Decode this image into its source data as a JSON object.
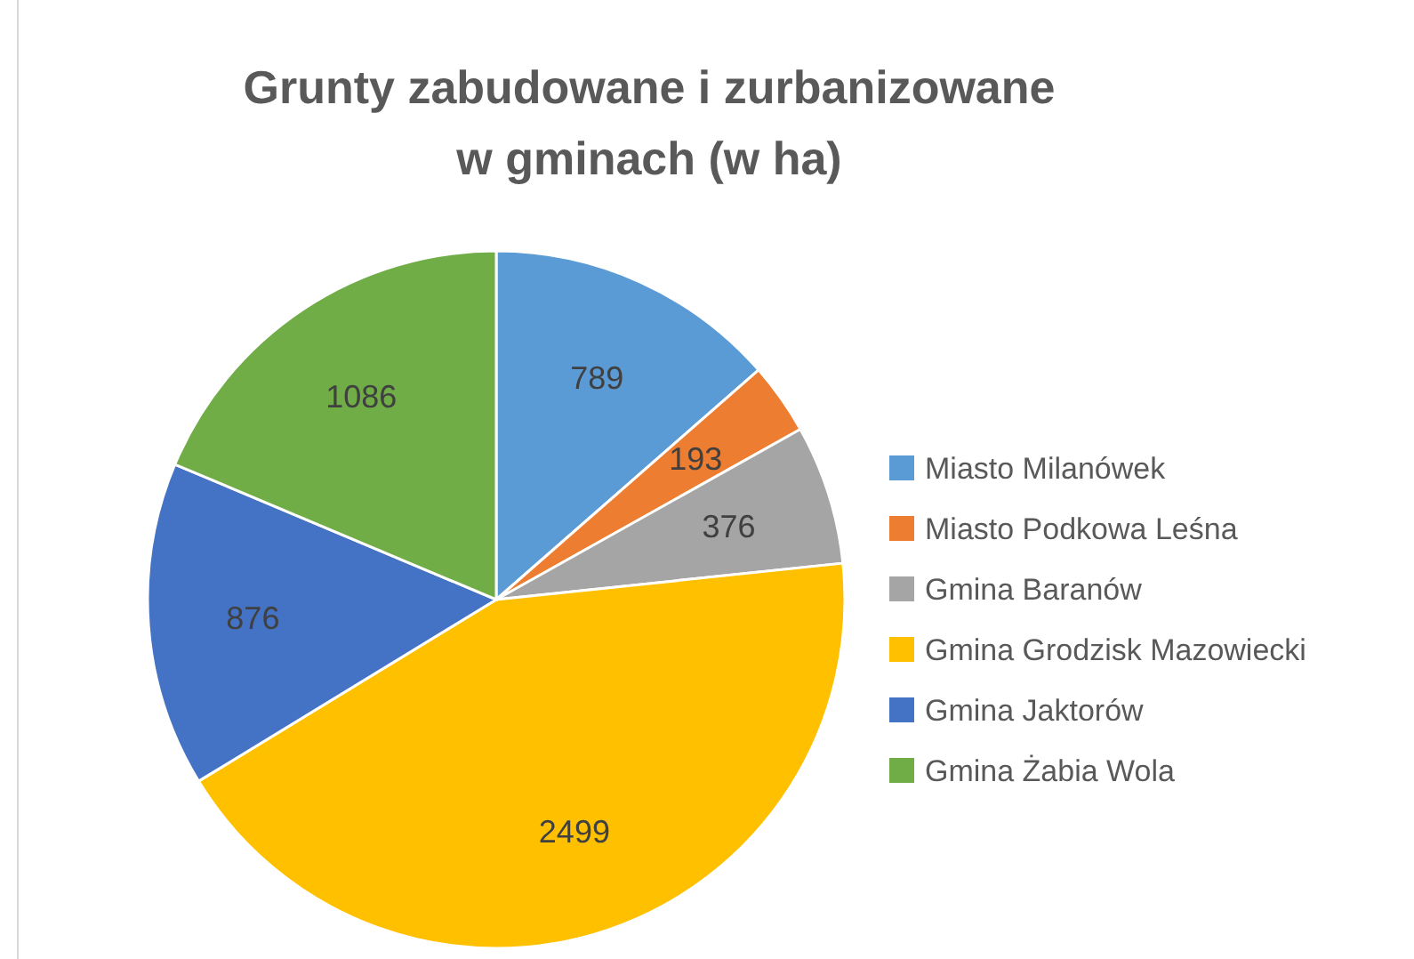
{
  "chart_data": {
    "type": "pie",
    "title": "Grunty zabudowane i zurbanizowane w gminach (w ha)",
    "categories": [
      "Miasto Milanówek",
      "Miasto Podkowa Leśna",
      "Gmina Baranów",
      "Gmina Grodzisk Mazowiecki",
      "Gmina Jaktorów",
      "Gmina Żabia Wola"
    ],
    "values": [
      789,
      193,
      376,
      2499,
      876,
      1086
    ],
    "colors": [
      "#5b9bd5",
      "#ed7d31",
      "#a5a5a5",
      "#ffc000",
      "#4472c4",
      "#70ad47"
    ],
    "data_labels": true,
    "legend": "right"
  }
}
